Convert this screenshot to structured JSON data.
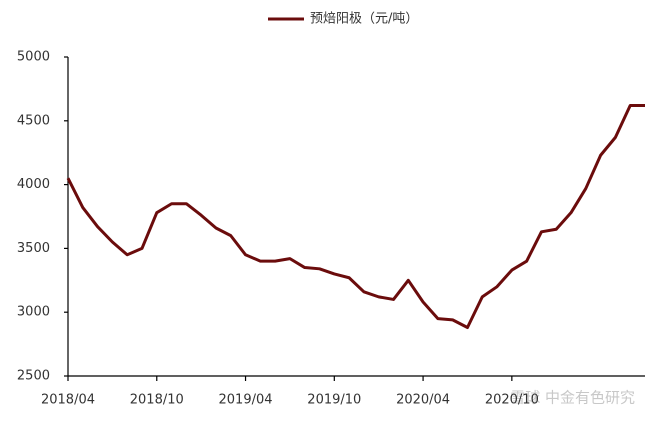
{
  "chart_data": {
    "type": "line",
    "categories": [
      "2018/04",
      null,
      null,
      null,
      null,
      null,
      "2018/10",
      null,
      null,
      null,
      null,
      null,
      "2019/04",
      null,
      null,
      null,
      null,
      null,
      "2019/10",
      null,
      null,
      null,
      null,
      null,
      "2020/04",
      null,
      null,
      null,
      null,
      null,
      "2020/10",
      null,
      null,
      null,
      null,
      null,
      null,
      null,
      null,
      null
    ],
    "series": [
      {
        "name": "预焙阳极（元/吨）",
        "color": "#6b0c0c",
        "values": [
          4050,
          3820,
          3670,
          3550,
          3450,
          3500,
          3780,
          3850,
          3850,
          3760,
          3660,
          3600,
          3450,
          3400,
          3400,
          3420,
          3350,
          3340,
          3300,
          3270,
          3160,
          3120,
          3100,
          3250,
          3080,
          2950,
          2940,
          2880,
          3120,
          3200,
          3330,
          3400,
          3630,
          3650,
          3780,
          3970,
          4230,
          4370,
          4620,
          4620
        ]
      }
    ],
    "ylim": [
      2500,
      5000
    ],
    "yticks": [
      2500,
      3000,
      3500,
      4000,
      4500,
      5000
    ],
    "watermark": "雪球 中金有色研究"
  }
}
